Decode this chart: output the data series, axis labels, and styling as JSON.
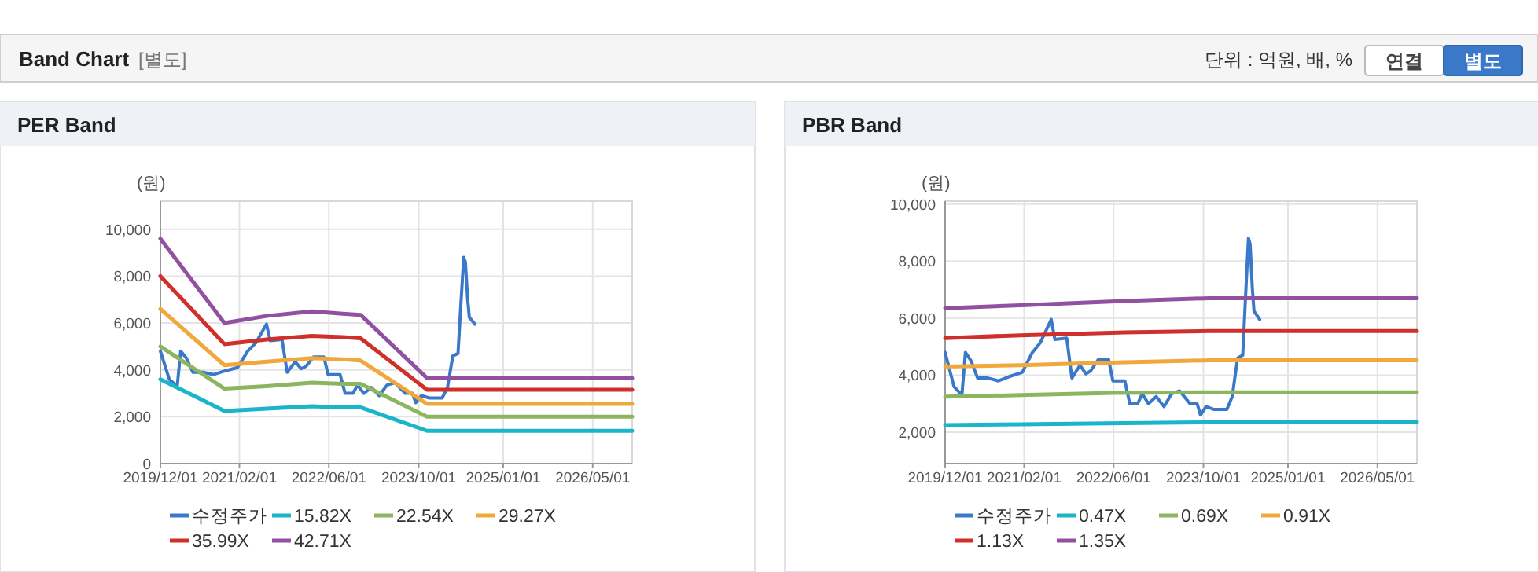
{
  "chart_data": [
    {
      "type": "other",
      "title": "Band Chart",
      "annotations": [
        "[별도]",
        "단위 : 억원, 배, %",
        "연결",
        "별도"
      ]
    },
    {
      "type": "line",
      "title": "PER Band",
      "ylabel": "(원)",
      "xlim": [
        "2019-12-01",
        "2026-12-01"
      ],
      "xticks": [
        {
          "value": "2019-12-01",
          "label": "2019/12/01"
        },
        {
          "value": "2021-02-01",
          "label": "2021/02/01"
        },
        {
          "value": "2022-06-01",
          "label": "2022/06/01"
        },
        {
          "value": "2023-10-01",
          "label": "2023/10/01"
        },
        {
          "value": "2025-01-01",
          "label": "2025/01/01"
        },
        {
          "value": "2026-05-01",
          "label": "2026/05/01"
        }
      ],
      "ylim": [
        0,
        11200
      ],
      "yticks": [
        {
          "value": 0,
          "label": "0"
        },
        {
          "value": 2000,
          "label": "2,000"
        },
        {
          "value": 4000,
          "label": "4,000"
        },
        {
          "value": 6000,
          "label": "6,000"
        },
        {
          "value": 8000,
          "label": "8,000"
        },
        {
          "value": 10000,
          "label": "10,000"
        }
      ],
      "grid": true,
      "legend": "bottom",
      "series": [
        {
          "name": "수정주가",
          "color": "#3a78c9",
          "x": [
            "2019-12-01",
            "2020-01-18",
            "2020-03-01",
            "2020-03-20",
            "2020-04-20",
            "2020-05-25",
            "2020-07-20",
            "2020-09-15",
            "2020-11-12",
            "2021-01-22",
            "2021-03-18",
            "2021-05-01",
            "2021-06-28",
            "2021-07-18",
            "2021-09-20",
            "2021-10-18",
            "2021-12-01",
            "2022-01-01",
            "2022-01-28",
            "2022-03-10",
            "2022-05-05",
            "2022-05-28",
            "2022-08-01",
            "2022-08-28",
            "2022-10-10",
            "2022-11-03",
            "2022-12-07",
            "2023-01-18",
            "2023-03-01",
            "2023-04-12",
            "2023-05-25",
            "2023-07-20",
            "2023-08-28",
            "2023-09-15",
            "2023-10-15",
            "2023-11-28",
            "2024-02-05",
            "2024-03-05",
            "2024-04-03",
            "2024-05-01",
            "2024-05-15",
            "2024-06-01",
            "2024-06-10",
            "2024-06-22",
            "2024-07-01",
            "2024-08-01"
          ],
          "values": [
            4800,
            3600,
            3300,
            4800,
            4500,
            3900,
            3900,
            3800,
            3950,
            4100,
            4800,
            5150,
            5950,
            5250,
            5300,
            3900,
            4350,
            4050,
            4150,
            4550,
            4550,
            3800,
            3800,
            3000,
            3000,
            3350,
            3000,
            3250,
            2900,
            3350,
            3450,
            3000,
            3000,
            2600,
            2900,
            2800,
            2800,
            3250,
            4600,
            4700,
            6600,
            8800,
            8600,
            7050,
            6250,
            5950
          ]
        },
        {
          "name": "15.82X",
          "color": "#1ab5c8",
          "x": [
            "2019-12-01",
            "2020-11-12",
            "2021-06-28",
            "2022-03-01",
            "2022-08-15",
            "2022-11-20",
            "2023-11-15",
            "2026-12-01"
          ],
          "values": [
            3600,
            2250,
            2350,
            2450,
            2400,
            2400,
            1400,
            1400
          ]
        },
        {
          "name": "22.54X",
          "color": "#8cb560",
          "x": [
            "2019-12-01",
            "2020-11-12",
            "2021-06-28",
            "2022-03-01",
            "2022-08-15",
            "2022-11-20",
            "2023-11-15",
            "2026-12-01"
          ],
          "values": [
            5000,
            3200,
            3300,
            3450,
            3400,
            3400,
            2000,
            2000
          ]
        },
        {
          "name": "29.27X",
          "color": "#f0a83c",
          "x": [
            "2019-12-01",
            "2020-11-12",
            "2021-06-28",
            "2022-03-01",
            "2022-08-15",
            "2022-11-20",
            "2023-11-15",
            "2026-12-01"
          ],
          "values": [
            6600,
            4200,
            4350,
            4500,
            4450,
            4400,
            2550,
            2550
          ]
        },
        {
          "name": "35.99X",
          "color": "#d0302c",
          "x": [
            "2019-12-01",
            "2020-11-12",
            "2021-06-28",
            "2022-03-01",
            "2022-08-15",
            "2022-11-20",
            "2023-11-15",
            "2026-12-01"
          ],
          "values": [
            8000,
            5100,
            5300,
            5450,
            5400,
            5350,
            3150,
            3150
          ]
        },
        {
          "name": "42.71X",
          "color": "#9150a0",
          "x": [
            "2019-12-01",
            "2020-11-12",
            "2021-06-28",
            "2022-03-01",
            "2022-08-15",
            "2022-11-20",
            "2023-11-15",
            "2026-12-01"
          ],
          "values": [
            9600,
            6000,
            6300,
            6500,
            6400,
            6350,
            3650,
            3650
          ]
        }
      ]
    },
    {
      "type": "line",
      "title": "PBR Band",
      "ylabel": "(원)",
      "xlim": [
        "2019-12-01",
        "2026-12-01"
      ],
      "xticks": [
        {
          "value": "2019-12-01",
          "label": "2019/12/01"
        },
        {
          "value": "2021-02-01",
          "label": "2021/02/01"
        },
        {
          "value": "2022-06-01",
          "label": "2022/06/01"
        },
        {
          "value": "2023-10-01",
          "label": "2023/10/01"
        },
        {
          "value": "2025-01-01",
          "label": "2025/01/01"
        },
        {
          "value": "2026-05-01",
          "label": "2026/05/01"
        }
      ],
      "ylim": [
        900,
        10100
      ],
      "yticks": [
        {
          "value": 2000,
          "label": "2,000"
        },
        {
          "value": 4000,
          "label": "4,000"
        },
        {
          "value": 6000,
          "label": "6,000"
        },
        {
          "value": 8000,
          "label": "8,000"
        },
        {
          "value": 10000,
          "label": "10,000"
        }
      ],
      "grid": true,
      "legend": "bottom",
      "series": [
        {
          "name": "수정주가",
          "color": "#3a78c9",
          "x": [
            "2019-12-01",
            "2020-01-18",
            "2020-03-01",
            "2020-03-20",
            "2020-04-20",
            "2020-05-25",
            "2020-07-20",
            "2020-09-15",
            "2020-11-12",
            "2021-01-22",
            "2021-03-18",
            "2021-05-01",
            "2021-06-28",
            "2021-07-18",
            "2021-09-20",
            "2021-10-18",
            "2021-12-01",
            "2022-01-01",
            "2022-01-28",
            "2022-03-10",
            "2022-05-05",
            "2022-05-28",
            "2022-08-01",
            "2022-08-28",
            "2022-10-10",
            "2022-11-03",
            "2022-12-07",
            "2023-01-18",
            "2023-03-01",
            "2023-04-12",
            "2023-05-25",
            "2023-07-20",
            "2023-08-28",
            "2023-09-15",
            "2023-10-15",
            "2023-11-28",
            "2024-02-05",
            "2024-03-05",
            "2024-04-03",
            "2024-05-01",
            "2024-05-15",
            "2024-06-01",
            "2024-06-10",
            "2024-06-22",
            "2024-07-01",
            "2024-08-01"
          ],
          "values": [
            4800,
            3600,
            3300,
            4800,
            4500,
            3900,
            3900,
            3800,
            3950,
            4100,
            4800,
            5150,
            5950,
            5250,
            5300,
            3900,
            4350,
            4050,
            4150,
            4550,
            4550,
            3800,
            3800,
            3000,
            3000,
            3350,
            3000,
            3250,
            2900,
            3350,
            3450,
            3000,
            3000,
            2600,
            2900,
            2800,
            2800,
            3250,
            4600,
            4700,
            6600,
            8800,
            8600,
            7050,
            6250,
            5950
          ]
        },
        {
          "name": "0.47X",
          "color": "#1ab5c8",
          "x": [
            "2019-12-01",
            "2021-01-15",
            "2022-08-01",
            "2023-11-01",
            "2026-12-01"
          ],
          "values": [
            2250,
            2280,
            2320,
            2350,
            2350
          ]
        },
        {
          "name": "0.69X",
          "color": "#8cb560",
          "x": [
            "2019-12-01",
            "2021-01-15",
            "2022-06-01",
            "2023-11-01",
            "2026-12-01"
          ],
          "values": [
            3250,
            3300,
            3380,
            3400,
            3400
          ]
        },
        {
          "name": "0.91X",
          "color": "#f0a83c",
          "x": [
            "2019-12-01",
            "2021-01-15",
            "2022-08-01",
            "2023-11-01",
            "2026-12-01"
          ],
          "values": [
            4300,
            4350,
            4450,
            4520,
            4520
          ]
        },
        {
          "name": "1.13X",
          "color": "#d0302c",
          "x": [
            "2019-12-01",
            "2021-01-15",
            "2022-08-01",
            "2023-11-01",
            "2026-12-01"
          ],
          "values": [
            5300,
            5400,
            5500,
            5550,
            5550
          ]
        },
        {
          "name": "1.35X",
          "color": "#9150a0",
          "x": [
            "2019-12-01",
            "2021-01-15",
            "2022-08-01",
            "2023-11-01",
            "2026-12-01"
          ],
          "values": [
            6350,
            6450,
            6600,
            6700,
            6700
          ]
        }
      ]
    }
  ]
}
